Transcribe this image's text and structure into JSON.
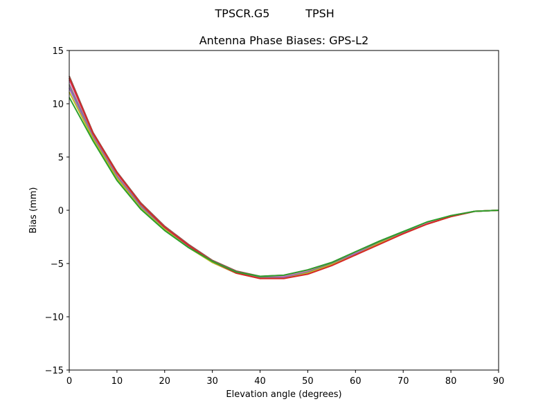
{
  "chart_data": {
    "type": "line",
    "suptitle": {
      "left": "TPSCR.G5",
      "right": "TPSH"
    },
    "title": "Antenna Phase Biases: GPS-L2",
    "xlabel": "Elevation angle (degrees)",
    "ylabel": "Bias (mm)",
    "xlim": [
      0,
      90
    ],
    "ylim": [
      -15,
      15
    ],
    "xticks": [
      0,
      10,
      20,
      30,
      40,
      50,
      60,
      70,
      80,
      90
    ],
    "yticks": [
      -15,
      -10,
      -5,
      0,
      5,
      10,
      15
    ],
    "ytick_labels": [
      "−15",
      "−10",
      "−5",
      "0",
      "5",
      "10",
      "15"
    ],
    "grid": false,
    "legend": null,
    "x": [
      0,
      5,
      10,
      15,
      20,
      25,
      30,
      35,
      40,
      45,
      50,
      55,
      60,
      65,
      70,
      75,
      80,
      85,
      90
    ],
    "series": [
      {
        "name": "line-1",
        "color": "#8c564b",
        "values": [
          12.6,
          7.3,
          3.6,
          0.7,
          -1.5,
          -3.2,
          -4.7,
          -5.7,
          -6.2,
          -6.1,
          -5.6,
          -4.9,
          -3.9,
          -2.9,
          -2.0,
          -1.2,
          -0.5,
          -0.1,
          0.0
        ]
      },
      {
        "name": "line-2",
        "color": "#e377c2",
        "values": [
          12.2,
          7.1,
          3.4,
          0.6,
          -1.6,
          -3.3,
          -4.8,
          -5.8,
          -6.3,
          -6.2,
          -5.7,
          -5.0,
          -4.0,
          -3.0,
          -2.1,
          -1.2,
          -0.5,
          -0.1,
          0.0
        ]
      },
      {
        "name": "line-3",
        "color": "#7f7f7f",
        "values": [
          11.8,
          6.9,
          3.2,
          0.4,
          -1.7,
          -3.4,
          -4.8,
          -5.8,
          -6.3,
          -6.3,
          -5.8,
          -5.0,
          -4.1,
          -3.0,
          -2.1,
          -1.3,
          -0.6,
          -0.1,
          0.0
        ]
      },
      {
        "name": "line-4",
        "color": "#9467bd",
        "values": [
          11.5,
          6.8,
          3.1,
          0.3,
          -1.8,
          -3.4,
          -4.9,
          -5.9,
          -6.4,
          -6.3,
          -5.9,
          -5.1,
          -4.1,
          -3.1,
          -2.2,
          -1.3,
          -0.6,
          -0.1,
          0.0
        ]
      },
      {
        "name": "line-5",
        "color": "#bcbd22",
        "values": [
          11.1,
          6.7,
          3.0,
          0.2,
          -1.8,
          -3.5,
          -4.9,
          -5.9,
          -6.4,
          -6.4,
          -5.9,
          -5.1,
          -4.2,
          -3.1,
          -2.2,
          -1.3,
          -0.6,
          -0.1,
          0.0
        ]
      },
      {
        "name": "line-6",
        "color": "#d62728",
        "values": [
          12.4,
          7.2,
          3.5,
          0.6,
          -1.6,
          -3.3,
          -4.8,
          -5.9,
          -6.4,
          -6.4,
          -6.0,
          -5.2,
          -4.2,
          -3.2,
          -2.2,
          -1.3,
          -0.6,
          -0.1,
          0.0
        ]
      },
      {
        "name": "line-7",
        "color": "#2ca02c",
        "values": [
          10.6,
          6.5,
          2.8,
          0.1,
          -1.9,
          -3.5,
          -4.8,
          -5.8,
          -6.2,
          -6.1,
          -5.6,
          -4.9,
          -3.9,
          -2.9,
          -2.0,
          -1.1,
          -0.5,
          -0.1,
          0.0
        ]
      }
    ]
  }
}
